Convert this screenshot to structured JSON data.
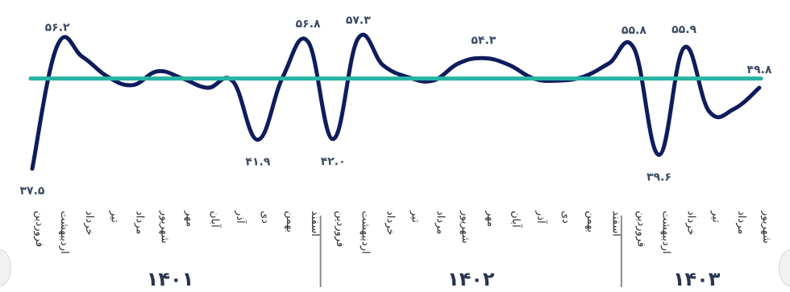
{
  "chart_data": {
    "type": "line",
    "categories": [
      "فروردین",
      "اردیبهشت",
      "خرداد",
      "تیر",
      "مرداد",
      "شهریور",
      "مهر",
      "آبان",
      "آذر",
      "دی",
      "بهمن",
      "اسفند",
      "فروردین",
      "اردیبهشت",
      "خرداد",
      "تیر",
      "مرداد",
      "شهریور",
      "مهر",
      "آبان",
      "آذر",
      "دی",
      "بهمن",
      "اسفند",
      "فروردین",
      "اردیبهشت",
      "خرداد",
      "تیر",
      "مرداد",
      "شهریور"
    ],
    "year_groups": [
      {
        "label": "۱۴۰۱",
        "start": 0,
        "end": 11
      },
      {
        "label": "۱۴۰۲",
        "start": 12,
        "end": 23
      },
      {
        "label": "۱۴۰۳",
        "start": 24,
        "end": 29
      }
    ],
    "series": [
      {
        "values": [
          37.5,
          56.2,
          54.5,
          51.5,
          50.2,
          52.3,
          51.2,
          49.8,
          50.8,
          41.9,
          51.5,
          56.8,
          42.0,
          57.3,
          53.2,
          51.4,
          50.9,
          53.5,
          54.3,
          53.3,
          51.2,
          50.9,
          51.5,
          53.5,
          55.8,
          39.6,
          55.9,
          46.2,
          46.6,
          49.8
        ],
        "labels": {
          "0": "۳۷.۵",
          "1": "۵۶.۲",
          "9": "۴۱.۹",
          "11": "۵۶.۸",
          "12": "۴۲.۰",
          "13": "۵۷.۳",
          "18": "۵۴.۳",
          "24": "۵۵.۸",
          "25": "۳۹.۶",
          "26": "۵۵.۹",
          "29": "۴۹.۸"
        },
        "color": "#0f1c5c"
      }
    ],
    "reference_line": {
      "value": 51.2,
      "color": "#26b4a4"
    },
    "ylim": [
      36,
      58
    ],
    "grid": false,
    "legend": "none"
  }
}
